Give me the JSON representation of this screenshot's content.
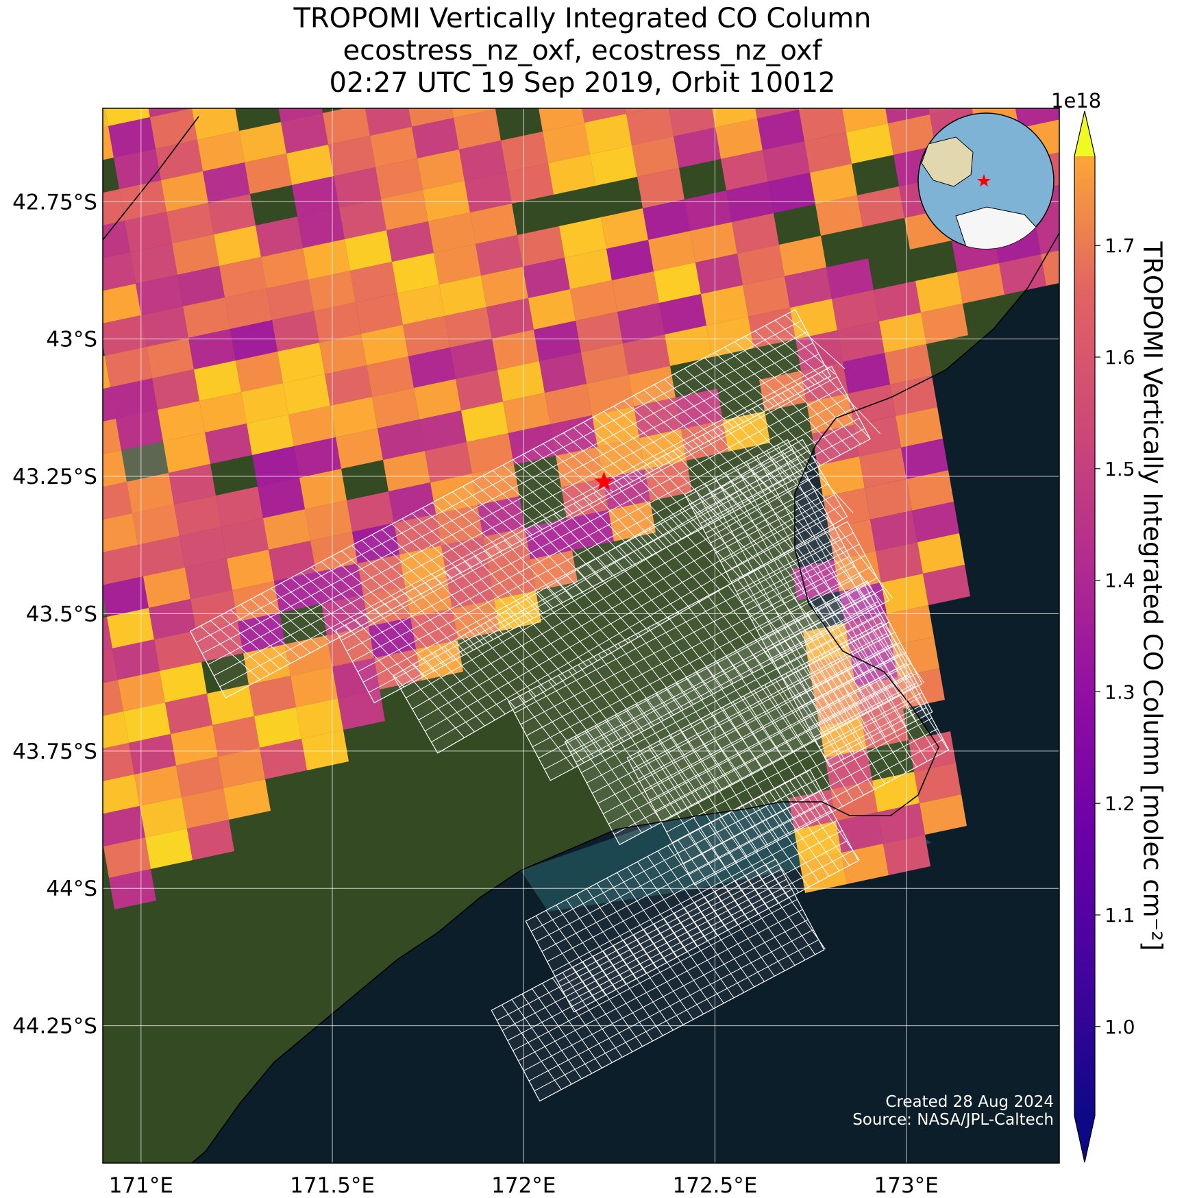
{
  "title": {
    "line1": "TROPOMI Vertically Integrated CO Column",
    "line2": "ecostress_nz_oxf, ecostress_nz_oxf",
    "line3": "02:27 UTC 19 Sep 2019, Orbit 10012"
  },
  "map": {
    "lon_range": [
      170.9,
      173.4
    ],
    "lat_range": [
      -44.5,
      -42.58
    ],
    "lon_ticks": [
      {
        "value": 171.0,
        "label": "171°E"
      },
      {
        "value": 171.5,
        "label": "171.5°E"
      },
      {
        "value": 172.0,
        "label": "172°E"
      },
      {
        "value": 172.5,
        "label": "172.5°E"
      },
      {
        "value": 173.0,
        "label": "173°E"
      }
    ],
    "lat_ticks": [
      {
        "value": -42.75,
        "label": "42.75°S"
      },
      {
        "value": -43.0,
        "label": "43°S"
      },
      {
        "value": -43.25,
        "label": "43.25°S"
      },
      {
        "value": -43.5,
        "label": "43.5°S"
      },
      {
        "value": -43.75,
        "label": "43.75°S"
      },
      {
        "value": -44.0,
        "label": "44°S"
      },
      {
        "value": -44.25,
        "label": "44.25°S"
      }
    ],
    "target_marker": {
      "lon": 172.21,
      "lat": -43.26,
      "color": "#ff0000",
      "shape": "star"
    },
    "colors": {
      "ocean": "#0d1e2b",
      "land": "#334a22",
      "coastline": "#000000",
      "gridline": "#ffffff",
      "footprint_outline": "#ffffff"
    }
  },
  "colorbar": {
    "label": "TROPOMI Vertically Integrated CO Column [molec cm⁻²]",
    "exponent": "1e18",
    "vmin": 0.92,
    "vmax": 1.78,
    "colormap": "plasma",
    "extend": "both",
    "ticks": [
      "1.0",
      "1.1",
      "1.2",
      "1.3",
      "1.4",
      "1.5",
      "1.6",
      "1.7"
    ]
  },
  "inset": {
    "description_icon": "globe-icon",
    "marker_color": "#ff0000"
  },
  "credits": {
    "created": "Created 28 Aug 2024",
    "source": "Source: NASA/JPL-Caltech"
  }
}
